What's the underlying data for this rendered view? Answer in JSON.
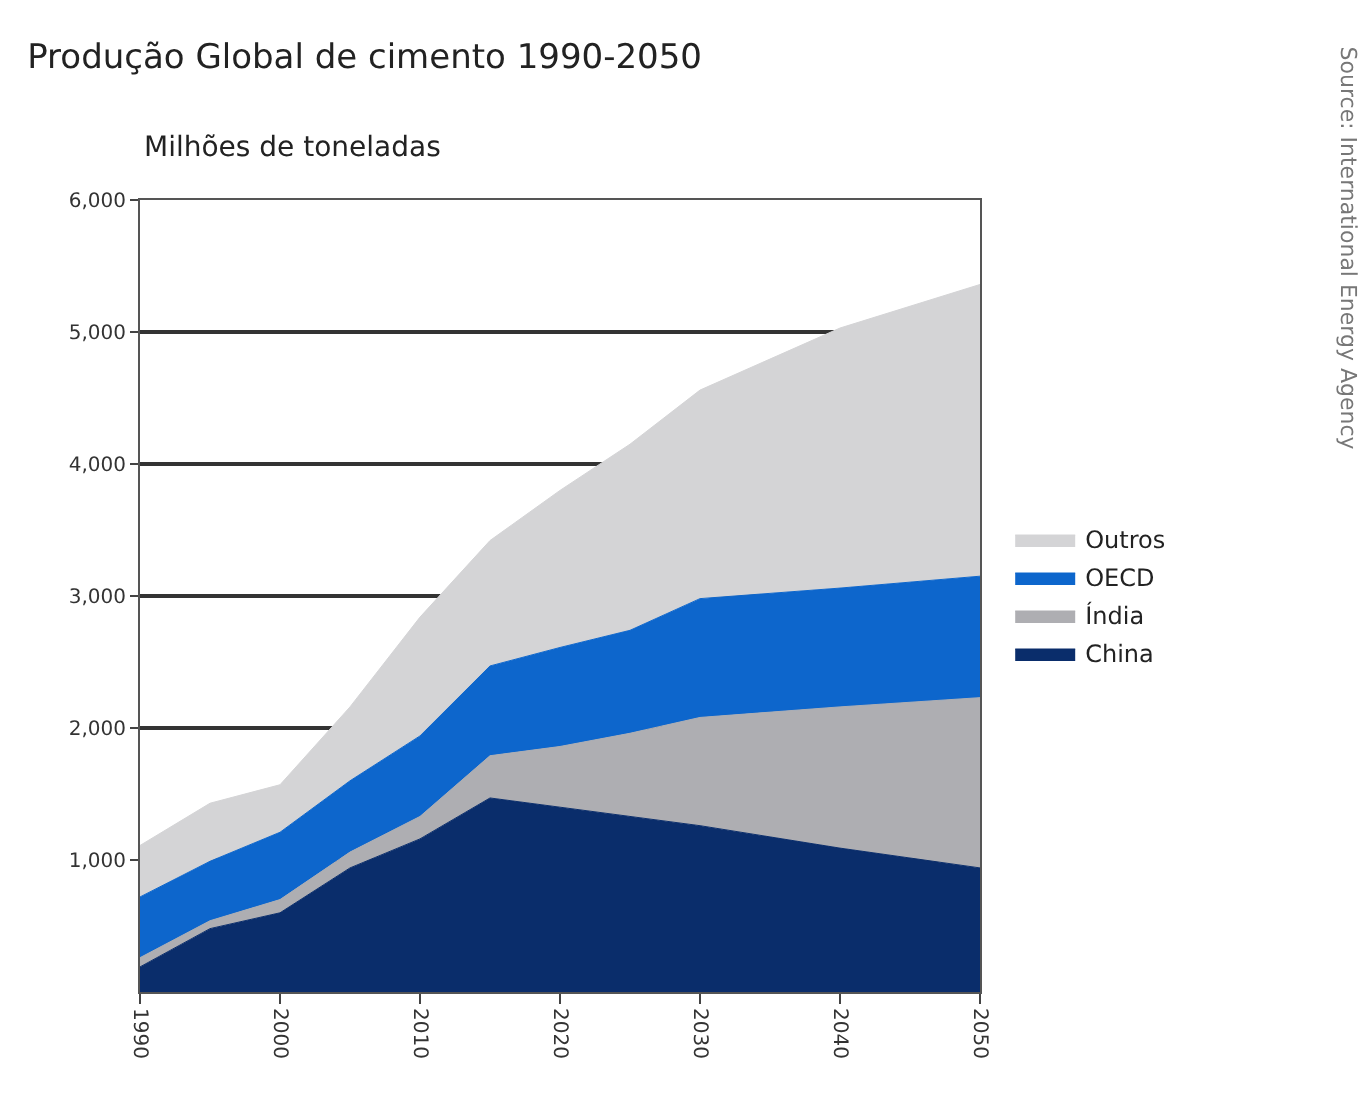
{
  "chart_data": {
    "type": "area",
    "title": "Produção Global de cimento 1990-2050",
    "subtitle": "Milhões de toneladas",
    "x": [
      1990,
      1995,
      2000,
      2005,
      2010,
      2015,
      2020,
      2025,
      2030,
      2040,
      2050
    ],
    "stacked": true,
    "series": [
      {
        "name": "China",
        "color": "#0a2d6b",
        "values": [
          190,
          480,
          600,
          940,
          1160,
          1470,
          1400,
          1330,
          1260,
          1090,
          940
        ]
      },
      {
        "name": "Índia",
        "color": "#aeaeb2",
        "values": [
          70,
          60,
          100,
          120,
          170,
          320,
          460,
          630,
          820,
          1070,
          1290
        ]
      },
      {
        "name": "OECD",
        "color": "#0d66cc",
        "values": [
          460,
          450,
          510,
          540,
          610,
          680,
          750,
          780,
          900,
          900,
          920
        ]
      },
      {
        "name": "Outros",
        "color": "#d4d4d6",
        "values": [
          390,
          440,
          360,
          560,
          900,
          950,
          1190,
          1410,
          1580,
          1970,
          2210
        ]
      }
    ],
    "xlim": [
      1990,
      2050
    ],
    "xticks": [
      1990,
      2000,
      2010,
      2020,
      2030,
      2040,
      2050
    ],
    "ylim": [
      0,
      6000
    ],
    "yticks": [
      {
        "value": 1000,
        "label": "1,000"
      },
      {
        "value": 2000,
        "label": "2,000"
      },
      {
        "value": 3000,
        "label": "3,000"
      },
      {
        "value": 4000,
        "label": "4,000"
      },
      {
        "value": 5000,
        "label": "5,000"
      },
      {
        "value": 6000,
        "label": "6,000"
      }
    ],
    "grid": "y",
    "legend": "right",
    "annotations": [
      "Source: International Energy Agency"
    ]
  }
}
